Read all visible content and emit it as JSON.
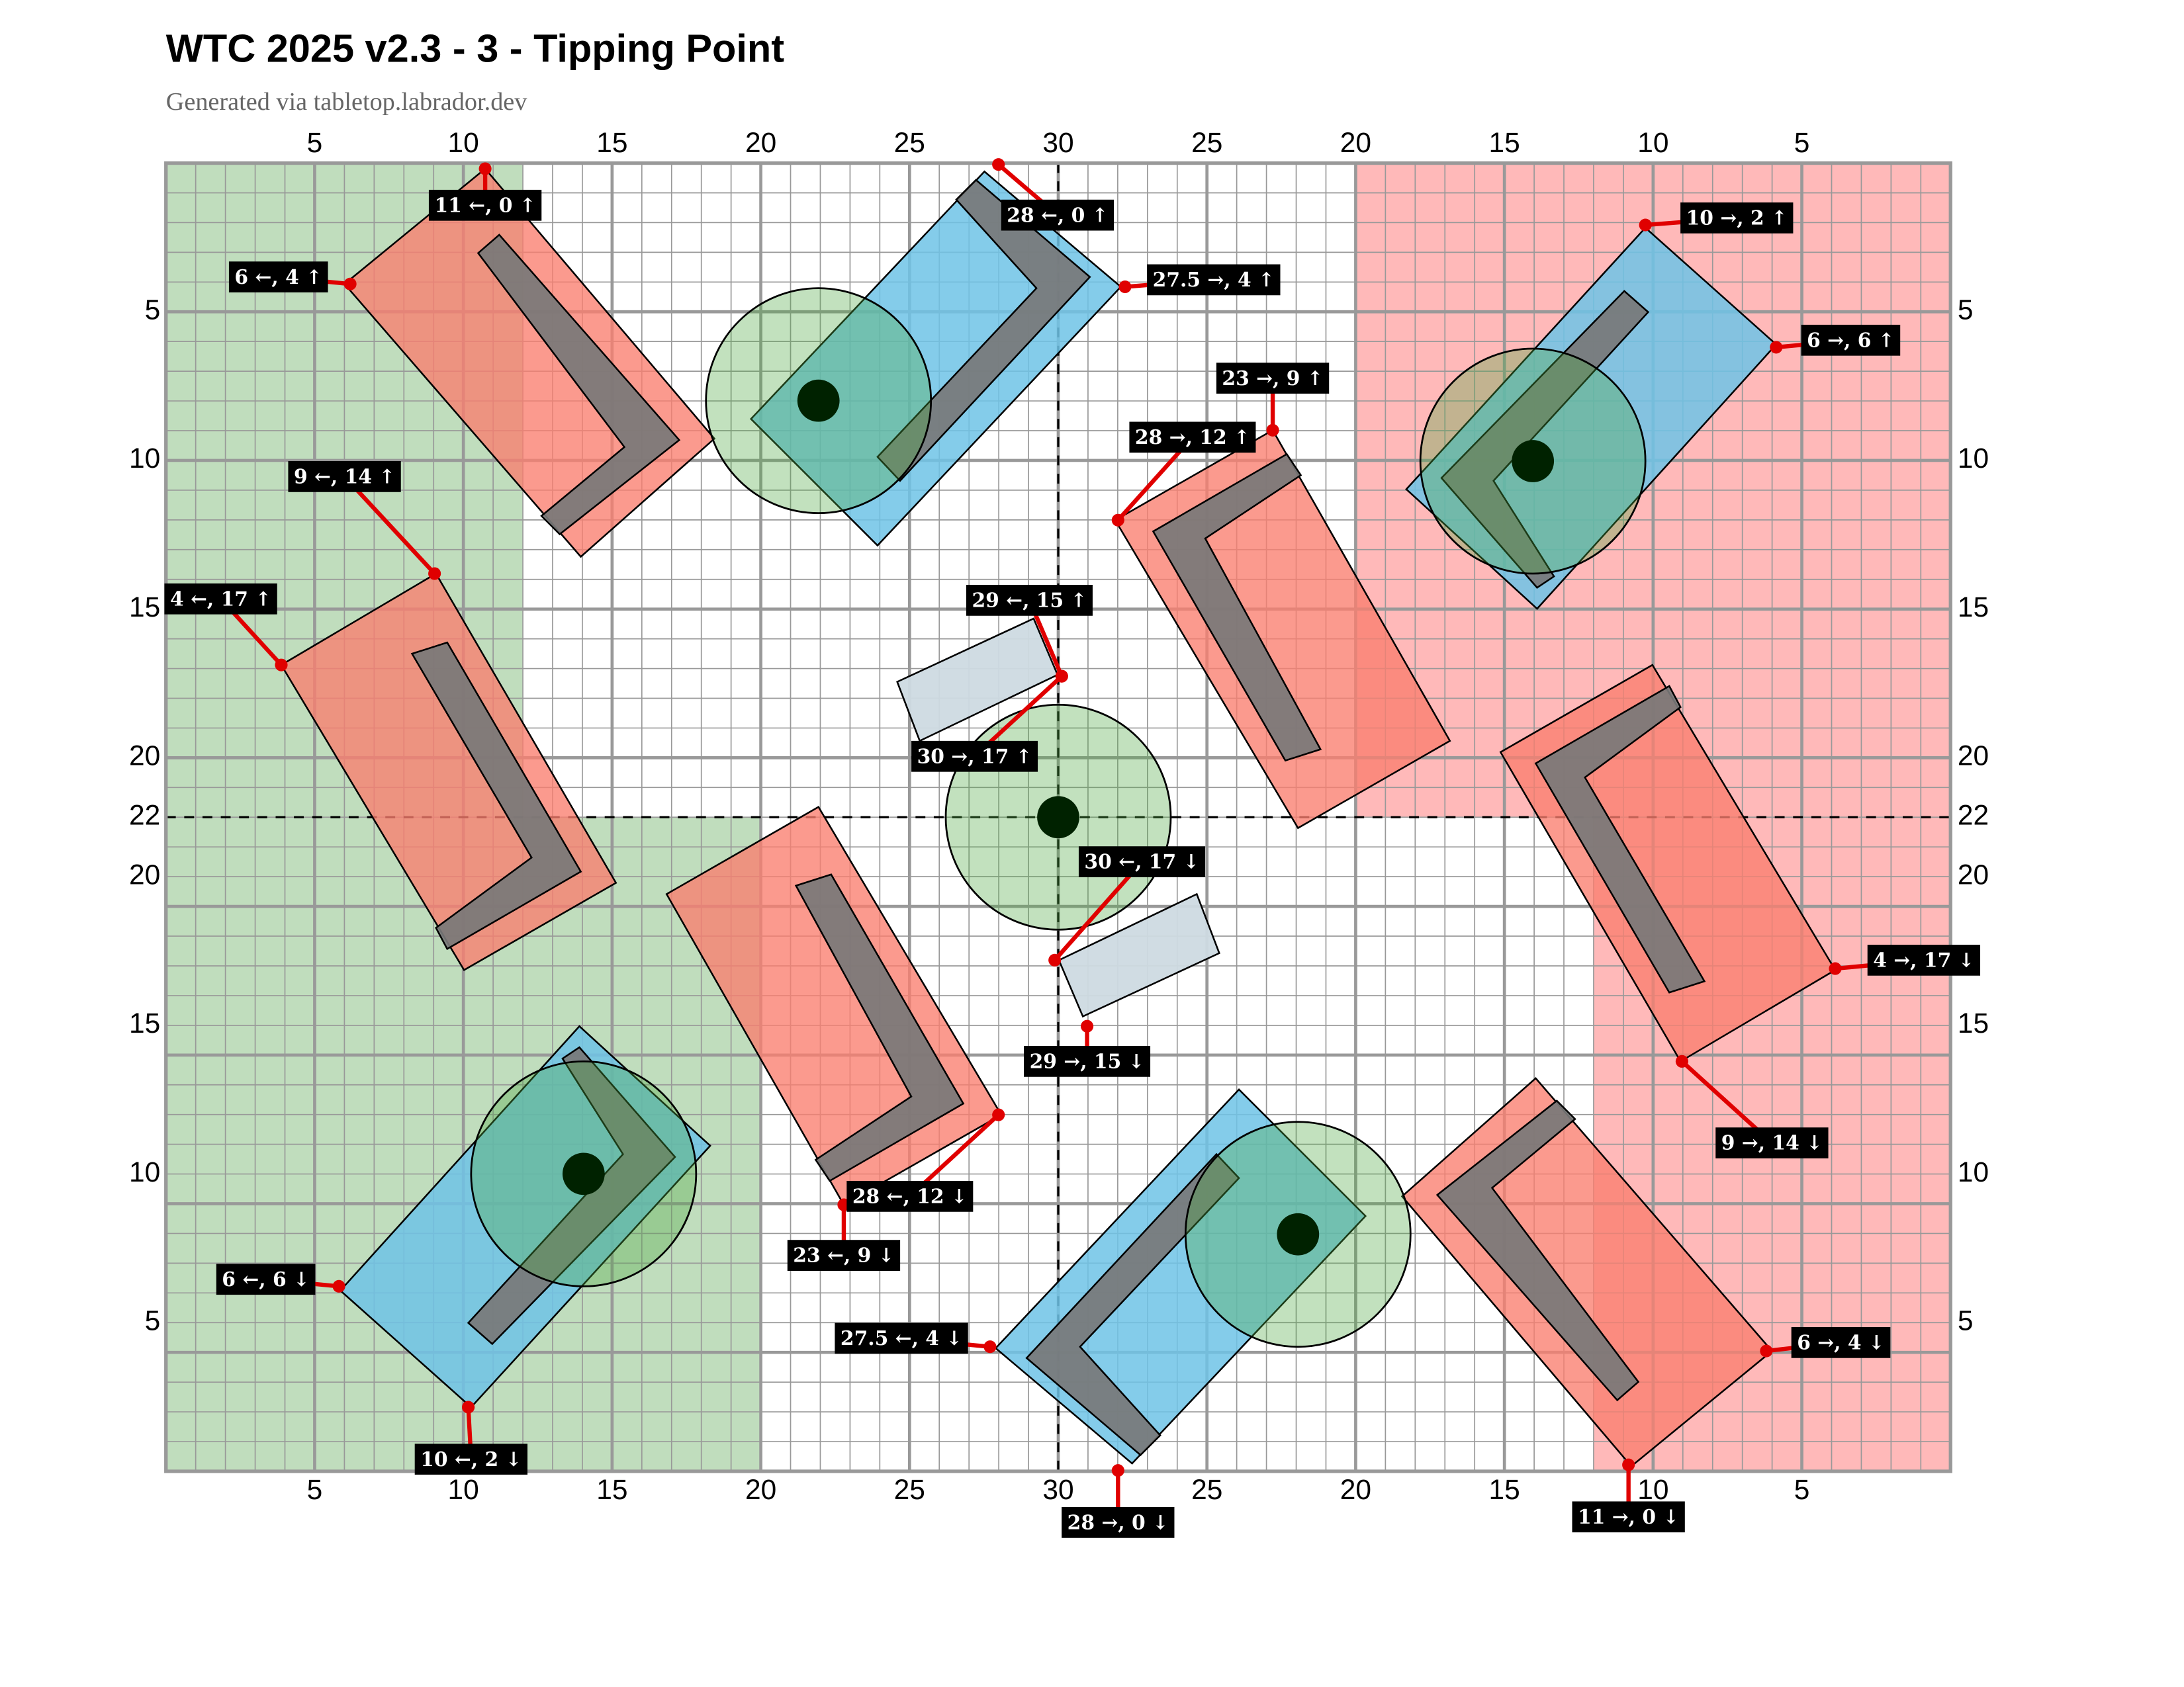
{
  "header": {
    "title": "WTC 2025 v2.3 - 3 - Tipping Point",
    "subtitle": "Generated via tabletop.labrador.dev"
  },
  "axes": {
    "top": [
      5,
      10,
      15,
      20,
      25,
      30,
      25,
      20,
      15,
      10,
      5
    ],
    "bottom": [
      5,
      10,
      15,
      20,
      25,
      30,
      25,
      20,
      15,
      10,
      5
    ],
    "left": [
      5,
      10,
      15,
      20,
      22,
      20,
      15,
      10,
      5
    ],
    "right": [
      5,
      10,
      15,
      20,
      22,
      20,
      15,
      10,
      5
    ]
  },
  "annotations": [
    "11 ←, 0 ↑",
    "6 ←, 4 ↑",
    "28 ←, 0 ↑",
    "27.5 →, 4 ↑",
    "10 →, 2 ↑",
    "6 →, 6 ↑",
    "23 →, 9 ↑",
    "28 →, 12 ↑",
    "9 ←, 14 ↑",
    "4 ←, 17 ↑",
    "29 ←, 15 ↑",
    "30 →, 17 ↑",
    "30 ←, 17 ↓",
    "29 →, 15 ↓",
    "4 →, 17 ↓",
    "9 →, 14 ↓",
    "28 ←, 12 ↓",
    "23 ←, 9 ↓",
    "6 ←, 6 ↓",
    "6 →, 4 ↓",
    "27.5 ←, 4 ↓",
    "10 ←, 2 ↓",
    "28 →, 0 ↓",
    "11 →, 0 ↓"
  ]
}
